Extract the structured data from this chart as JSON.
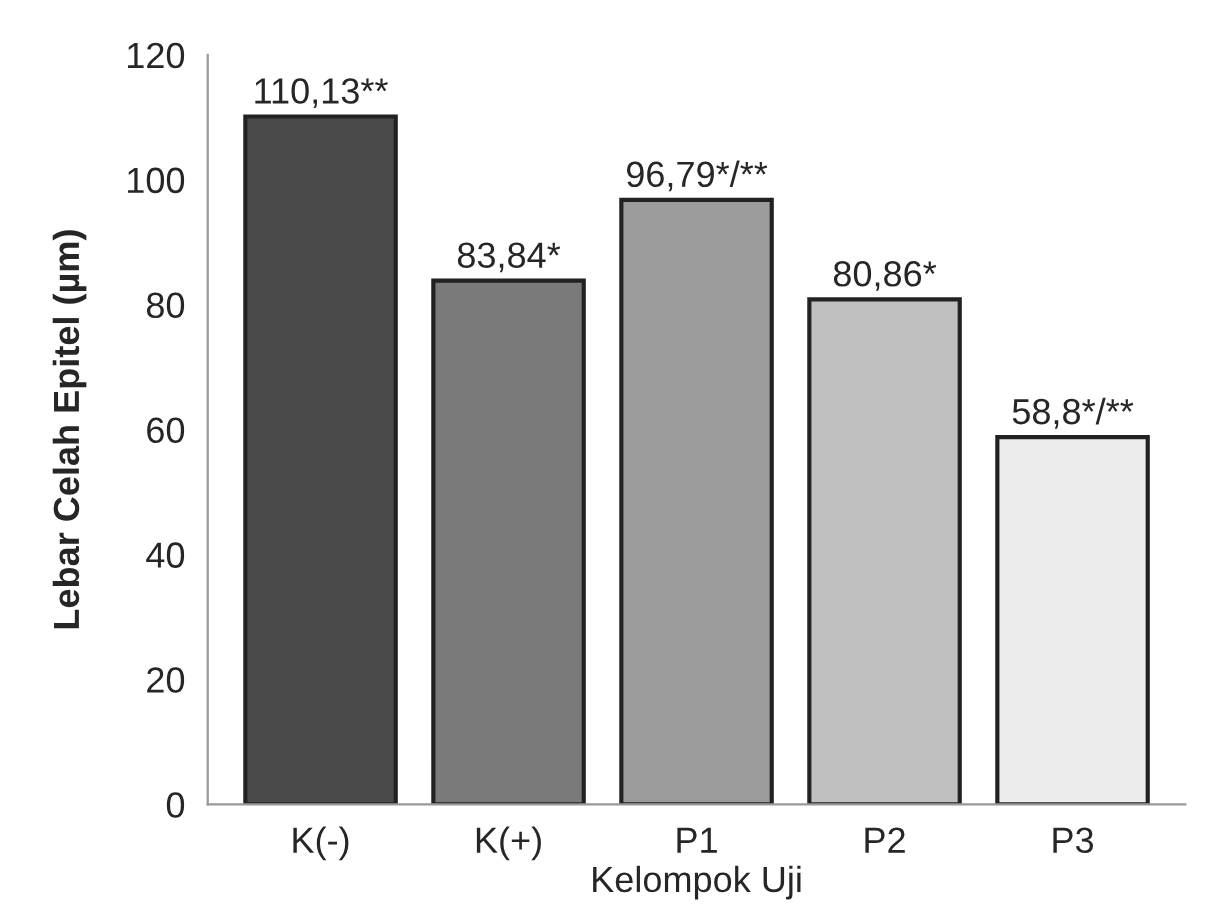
{
  "chart_data": {
    "type": "bar",
    "xlabel": "Kelompok Uji",
    "ylabel": "Lebar Celah Epitel (µm)",
    "categories": [
      "K(-)",
      "K(+)",
      "P1",
      "P2",
      "P3"
    ],
    "values": [
      110.13,
      83.84,
      96.79,
      80.86,
      58.8
    ],
    "colors": [
      "#4a4a4a",
      "#7a7a7a",
      "#9c9c9c",
      "#c0c0c0",
      "#ececec"
    ],
    "value_labels": [
      "110,13**",
      "83,84*",
      "96,79*/**",
      "80,86*",
      "58,8*/**"
    ],
    "ylim": [
      0,
      120
    ],
    "yticks": [
      0,
      20,
      40,
      60,
      80,
      100,
      120
    ],
    "grid": false,
    "legend": false
  }
}
